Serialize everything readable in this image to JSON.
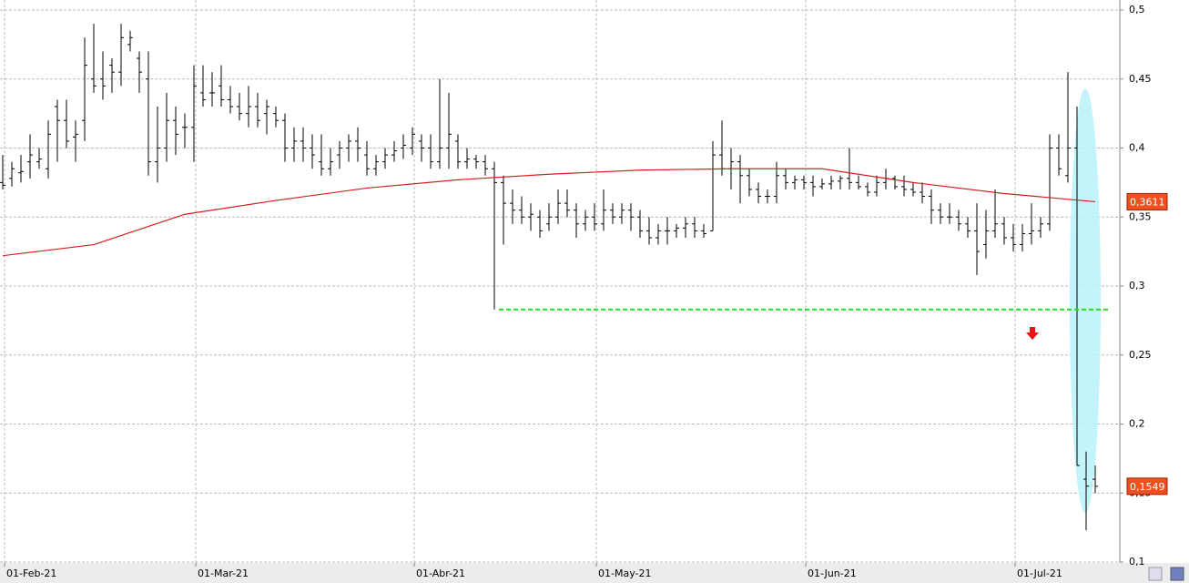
{
  "chart_data": {
    "type": "ohlc",
    "categories": [
      "01-Feb-21",
      null,
      null,
      null,
      null,
      null,
      null,
      null,
      null,
      null,
      null,
      null,
      null,
      null,
      null,
      null,
      null,
      null,
      null,
      null,
      null,
      "01-Mar-21",
      null,
      null,
      null,
      null,
      null,
      null,
      null,
      null,
      null,
      null,
      null,
      null,
      null,
      null,
      null,
      null,
      null,
      null,
      null,
      null,
      null,
      null,
      null,
      "01-Abr-21",
      null,
      null,
      null,
      null,
      null,
      null,
      null,
      null,
      null,
      null,
      null,
      null,
      null,
      null,
      null,
      null,
      null,
      null,
      null,
      "01-May-21",
      null,
      null,
      null,
      null,
      null,
      null,
      null,
      null,
      null,
      null,
      null,
      null,
      null,
      null,
      null,
      null,
      null,
      null,
      null,
      null,
      null,
      null,
      "01-Jun-21",
      null,
      null,
      null,
      null,
      null,
      null,
      null,
      null,
      null,
      null,
      null,
      null,
      null,
      null,
      null,
      null,
      null,
      null,
      null,
      null,
      null,
      null,
      "01-Jul-21",
      null,
      null,
      null,
      null,
      null,
      null,
      null,
      null,
      null
    ],
    "ohlc": [
      [
        0.375,
        0.395,
        0.37,
        0.373
      ],
      [
        0.378,
        0.39,
        0.372,
        0.385
      ],
      [
        0.382,
        0.395,
        0.375,
        0.383
      ],
      [
        0.39,
        0.41,
        0.378,
        0.395
      ],
      [
        0.39,
        0.4,
        0.385,
        0.392
      ],
      [
        0.385,
        0.42,
        0.378,
        0.41
      ],
      [
        0.43,
        0.435,
        0.39,
        0.42
      ],
      [
        0.42,
        0.435,
        0.4,
        0.405
      ],
      [
        0.408,
        0.42,
        0.39,
        0.41
      ],
      [
        0.42,
        0.48,
        0.405,
        0.46
      ],
      [
        0.45,
        0.49,
        0.44,
        0.445
      ],
      [
        0.45,
        0.47,
        0.435,
        0.445
      ],
      [
        0.46,
        0.465,
        0.44,
        0.455
      ],
      [
        0.455,
        0.49,
        0.445,
        0.48
      ],
      [
        0.475,
        0.485,
        0.47,
        0.48
      ],
      [
        0.465,
        0.47,
        0.44,
        0.455
      ],
      [
        0.45,
        0.47,
        0.38,
        0.39
      ],
      [
        0.39,
        0.43,
        0.375,
        0.4
      ],
      [
        0.4,
        0.44,
        0.39,
        0.42
      ],
      [
        0.42,
        0.43,
        0.395,
        0.41
      ],
      [
        0.415,
        0.425,
        0.4,
        0.415
      ],
      [
        0.415,
        0.46,
        0.39,
        0.445
      ],
      [
        0.44,
        0.46,
        0.43,
        0.435
      ],
      [
        0.44,
        0.455,
        0.43,
        0.44
      ],
      [
        0.445,
        0.46,
        0.43,
        0.435
      ],
      [
        0.435,
        0.445,
        0.425,
        0.43
      ],
      [
        0.43,
        0.44,
        0.42,
        0.425
      ],
      [
        0.425,
        0.445,
        0.415,
        0.43
      ],
      [
        0.43,
        0.44,
        0.415,
        0.42
      ],
      [
        0.425,
        0.435,
        0.41,
        0.43
      ],
      [
        0.425,
        0.43,
        0.415,
        0.42
      ],
      [
        0.42,
        0.425,
        0.39,
        0.4
      ],
      [
        0.4,
        0.415,
        0.39,
        0.405
      ],
      [
        0.405,
        0.415,
        0.39,
        0.4
      ],
      [
        0.4,
        0.41,
        0.385,
        0.395
      ],
      [
        0.39,
        0.41,
        0.38,
        0.385
      ],
      [
        0.385,
        0.4,
        0.38,
        0.39
      ],
      [
        0.395,
        0.405,
        0.385,
        0.4
      ],
      [
        0.4,
        0.41,
        0.39,
        0.405
      ],
      [
        0.405,
        0.415,
        0.39,
        0.4
      ],
      [
        0.395,
        0.405,
        0.38,
        0.385
      ],
      [
        0.385,
        0.395,
        0.38,
        0.39
      ],
      [
        0.39,
        0.4,
        0.385,
        0.395
      ],
      [
        0.395,
        0.405,
        0.39,
        0.398
      ],
      [
        0.4,
        0.41,
        0.392,
        0.402
      ],
      [
        0.4,
        0.415,
        0.395,
        0.41
      ],
      [
        0.405,
        0.41,
        0.39,
        0.4
      ],
      [
        0.4,
        0.41,
        0.385,
        0.39
      ],
      [
        0.39,
        0.45,
        0.385,
        0.4
      ],
      [
        0.4,
        0.44,
        0.385,
        0.41
      ],
      [
        0.405,
        0.41,
        0.385,
        0.39
      ],
      [
        0.39,
        0.4,
        0.385,
        0.392
      ],
      [
        0.392,
        0.395,
        0.385,
        0.39
      ],
      [
        0.39,
        0.395,
        0.38,
        0.385
      ],
      [
        0.385,
        0.39,
        0.283,
        0.375
      ],
      [
        0.375,
        0.38,
        0.33,
        0.36
      ],
      [
        0.36,
        0.37,
        0.345,
        0.355
      ],
      [
        0.355,
        0.365,
        0.345,
        0.35
      ],
      [
        0.35,
        0.36,
        0.34,
        0.352
      ],
      [
        0.35,
        0.355,
        0.335,
        0.34
      ],
      [
        0.345,
        0.36,
        0.34,
        0.35
      ],
      [
        0.35,
        0.37,
        0.345,
        0.36
      ],
      [
        0.36,
        0.37,
        0.35,
        0.355
      ],
      [
        0.355,
        0.36,
        0.335,
        0.345
      ],
      [
        0.345,
        0.355,
        0.34,
        0.35
      ],
      [
        0.35,
        0.36,
        0.34,
        0.345
      ],
      [
        0.345,
        0.37,
        0.34,
        0.355
      ],
      [
        0.355,
        0.36,
        0.345,
        0.35
      ],
      [
        0.35,
        0.36,
        0.345,
        0.355
      ],
      [
        0.355,
        0.36,
        0.34,
        0.35
      ],
      [
        0.35,
        0.355,
        0.335,
        0.34
      ],
      [
        0.34,
        0.35,
        0.33,
        0.335
      ],
      [
        0.335,
        0.345,
        0.33,
        0.34
      ],
      [
        0.34,
        0.35,
        0.33,
        0.34
      ],
      [
        0.34,
        0.345,
        0.335,
        0.342
      ],
      [
        0.342,
        0.35,
        0.335,
        0.345
      ],
      [
        0.345,
        0.35,
        0.335,
        0.34
      ],
      [
        0.34,
        0.345,
        0.335,
        0.338
      ],
      [
        0.34,
        0.405,
        0.34,
        0.395
      ],
      [
        0.395,
        0.42,
        0.38,
        0.385
      ],
      [
        0.385,
        0.4,
        0.37,
        0.39
      ],
      [
        0.39,
        0.395,
        0.36,
        0.38
      ],
      [
        0.38,
        0.385,
        0.365,
        0.37
      ],
      [
        0.37,
        0.375,
        0.36,
        0.365
      ],
      [
        0.365,
        0.37,
        0.36,
        0.365
      ],
      [
        0.365,
        0.39,
        0.36,
        0.38
      ],
      [
        0.38,
        0.385,
        0.37,
        0.375
      ],
      [
        0.375,
        0.38,
        0.37,
        0.377
      ],
      [
        0.377,
        0.38,
        0.37,
        0.375
      ],
      [
        0.375,
        0.38,
        0.365,
        0.372
      ],
      [
        0.372,
        0.378,
        0.37,
        0.374
      ],
      [
        0.374,
        0.38,
        0.37,
        0.376
      ],
      [
        0.376,
        0.38,
        0.37,
        0.378
      ],
      [
        0.378,
        0.4,
        0.37,
        0.375
      ],
      [
        0.375,
        0.38,
        0.37,
        0.372
      ],
      [
        0.372,
        0.375,
        0.365,
        0.368
      ],
      [
        0.368,
        0.38,
        0.365,
        0.375
      ],
      [
        0.375,
        0.385,
        0.37,
        0.378
      ],
      [
        0.378,
        0.38,
        0.37,
        0.372
      ],
      [
        0.372,
        0.38,
        0.365,
        0.37
      ],
      [
        0.37,
        0.375,
        0.365,
        0.368
      ],
      [
        0.368,
        0.375,
        0.36,
        0.365
      ],
      [
        0.365,
        0.37,
        0.345,
        0.355
      ],
      [
        0.355,
        0.36,
        0.345,
        0.35
      ],
      [
        0.35,
        0.36,
        0.345,
        0.35
      ],
      [
        0.35,
        0.355,
        0.34,
        0.345
      ],
      [
        0.345,
        0.35,
        0.335,
        0.34
      ],
      [
        0.34,
        0.36,
        0.308,
        0.325
      ],
      [
        0.33,
        0.355,
        0.32,
        0.34
      ],
      [
        0.34,
        0.37,
        0.335,
        0.345
      ],
      [
        0.345,
        0.35,
        0.33,
        0.335
      ],
      [
        0.335,
        0.345,
        0.325,
        0.33
      ],
      [
        0.33,
        0.345,
        0.325,
        0.338
      ],
      [
        0.338,
        0.36,
        0.33,
        0.34
      ],
      [
        0.34,
        0.35,
        0.335,
        0.345
      ],
      [
        0.345,
        0.41,
        0.34,
        0.4
      ],
      [
        0.4,
        0.41,
        0.38,
        0.385
      ],
      [
        0.38,
        0.455,
        0.375,
        0.4
      ],
      [
        0.4,
        0.43,
        0.17,
        0.17
      ],
      [
        0.16,
        0.18,
        0.123,
        0.155
      ],
      [
        0.16,
        0.17,
        0.15,
        0.1549
      ]
    ],
    "bar_color": "#000000",
    "moving_average": {
      "color": "#d42020",
      "x": [
        0,
        10,
        20,
        30,
        40,
        50,
        60,
        70,
        80,
        90,
        100,
        110,
        120
      ],
      "values": [
        0.322,
        0.33,
        0.352,
        0.362,
        0.371,
        0.377,
        0.381,
        0.384,
        0.385,
        0.385,
        0.375,
        0.367,
        0.3611
      ]
    },
    "support": {
      "value": 0.283,
      "color": "#22dd22"
    },
    "price_labels": [
      {
        "value": 0.3611,
        "label": "0,3611"
      },
      {
        "value": 0.1549,
        "label": "0,1549"
      }
    ],
    "ylim": [
      0.1,
      0.5
    ],
    "yticks": [
      {
        "value": 0.1,
        "label": "0,1"
      },
      {
        "value": 0.15,
        "label": "0,15"
      },
      {
        "value": 0.2,
        "label": "0,2"
      },
      {
        "value": 0.25,
        "label": "0,25"
      },
      {
        "value": 0.3,
        "label": "0,3"
      },
      {
        "value": 0.35,
        "label": "0,35"
      },
      {
        "value": 0.4,
        "label": "0,4"
      },
      {
        "value": 0.45,
        "label": "0,45"
      },
      {
        "value": 0.5,
        "label": "0,5"
      }
    ],
    "grid": true
  }
}
